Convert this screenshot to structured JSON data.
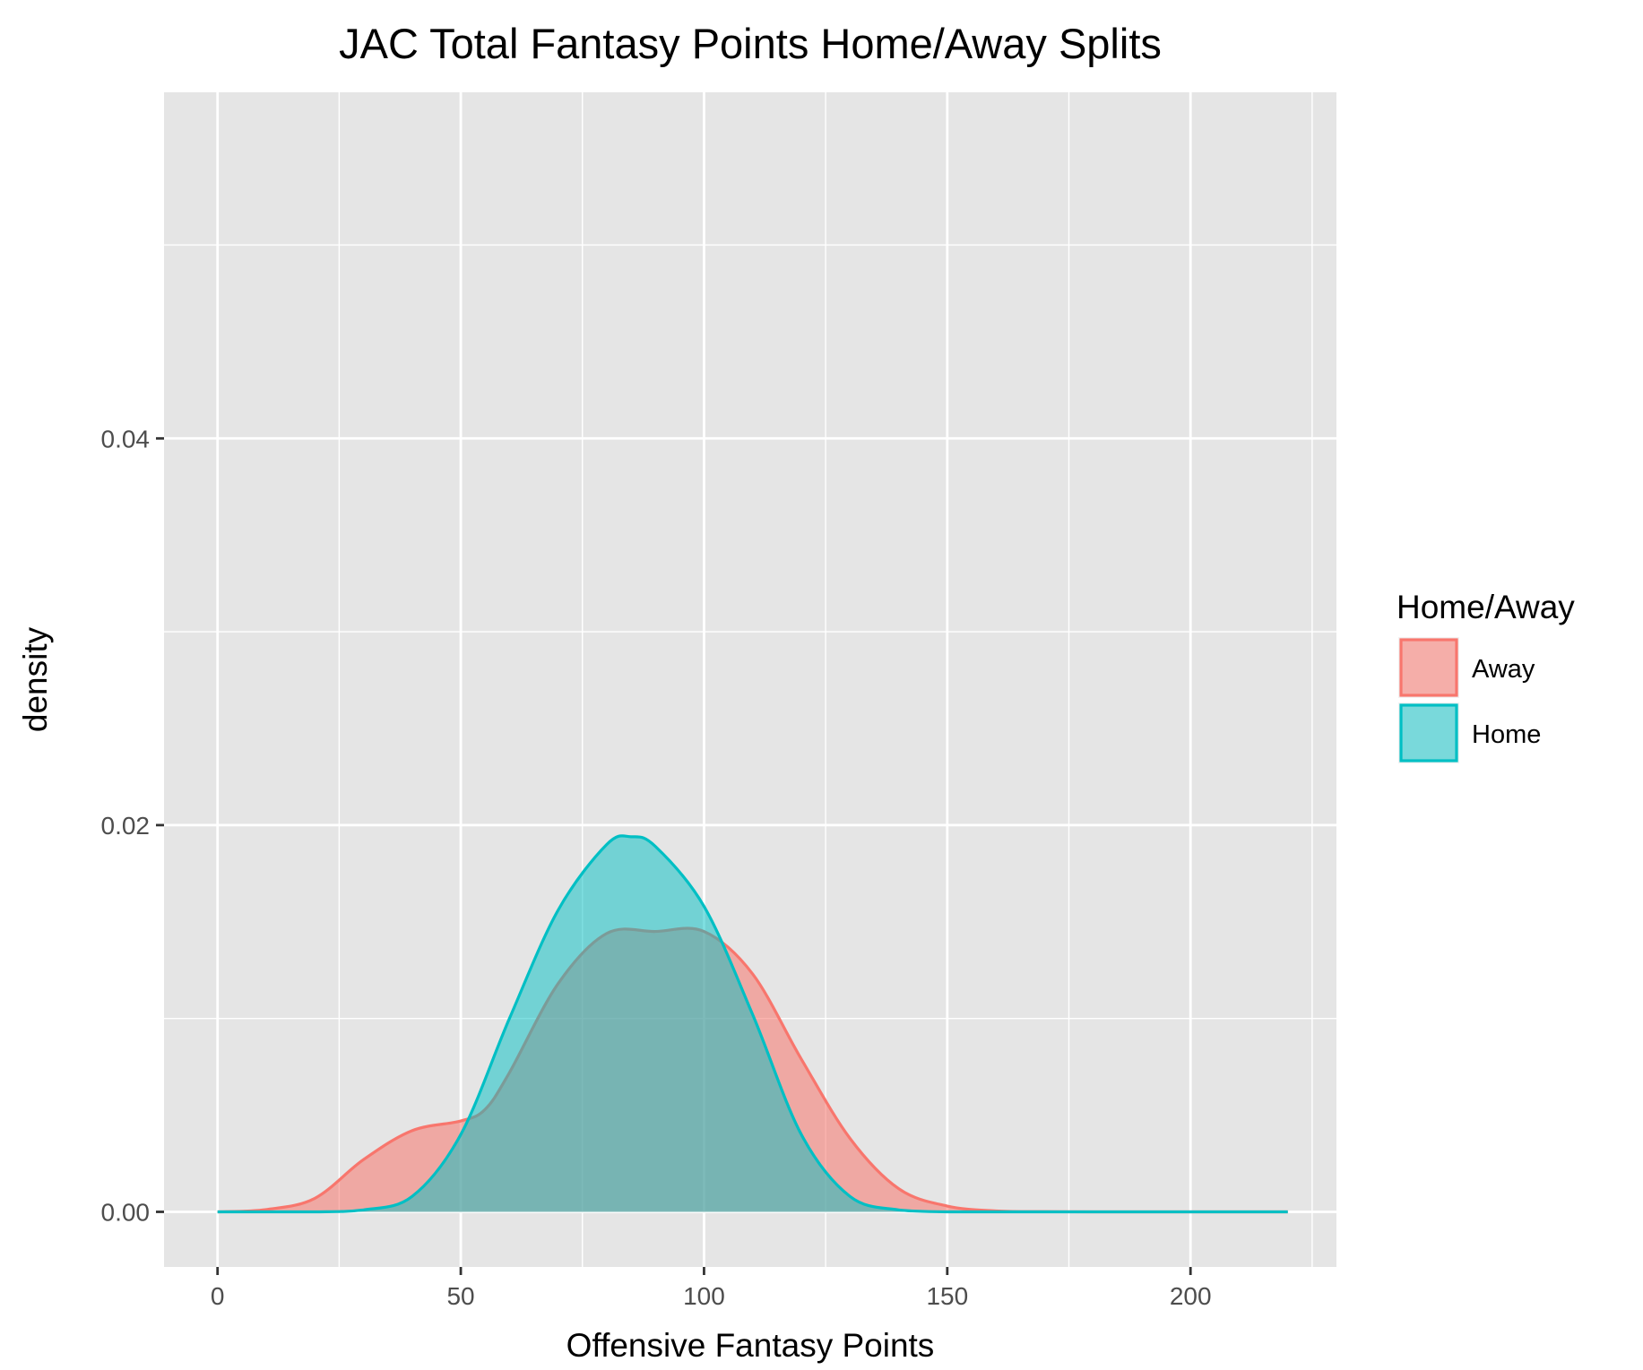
{
  "chart_data": {
    "type": "area",
    "title": "JAC Total Fantasy Points Home/Away Splits",
    "xlabel": "Offensive Fantasy Points",
    "ylabel": "density",
    "xlim": [
      -11,
      230
    ],
    "ylim": [
      -0.00285,
      0.0579
    ],
    "x_ticks": [
      0,
      50,
      100,
      150,
      200
    ],
    "y_ticks": [
      0.0,
      0.02,
      0.04
    ],
    "y_tick_labels": [
      "0.00",
      "0.02",
      "0.04"
    ],
    "grid": true,
    "legend": {
      "title": "Home/Away",
      "position": "right"
    },
    "series": [
      {
        "name": "Away",
        "fill": "#f8766d",
        "stroke": "#f8766d",
        "fill_opacity": 0.55,
        "x": [
          0,
          10,
          20,
          30,
          40,
          50,
          55,
          60,
          70,
          80,
          90,
          100,
          110,
          120,
          130,
          140,
          150,
          160,
          170,
          180,
          200,
          220
        ],
        "y": [
          0.0,
          0.00012,
          0.0007,
          0.0027,
          0.0042,
          0.0047,
          0.0053,
          0.0072,
          0.0118,
          0.0144,
          0.0145,
          0.0145,
          0.0123,
          0.0079,
          0.0038,
          0.0012,
          0.0003,
          5e-05,
          1e-05,
          0.0,
          0.0,
          0.0
        ]
      },
      {
        "name": "Home",
        "fill": "#00bfc4",
        "stroke": "#00bfc4",
        "fill_opacity": 0.5,
        "x": [
          0,
          20,
          30,
          40,
          50,
          60,
          70,
          80,
          85,
          90,
          100,
          110,
          120,
          130,
          140,
          150,
          160,
          180,
          200,
          220
        ],
        "y": [
          0.0,
          0.0,
          0.0001,
          0.0008,
          0.004,
          0.01,
          0.0156,
          0.019,
          0.0194,
          0.0189,
          0.0158,
          0.0102,
          0.004,
          0.0008,
          0.0001,
          0.0,
          0.0,
          0.0,
          0.0,
          0.0
        ]
      }
    ]
  }
}
